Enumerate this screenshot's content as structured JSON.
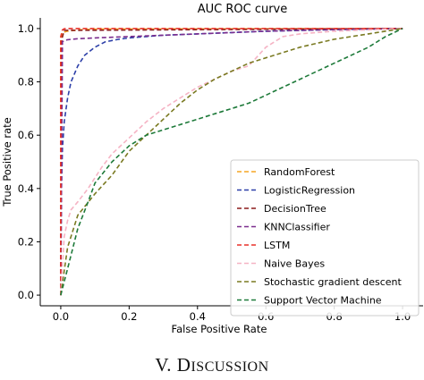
{
  "chart_data": {
    "type": "line",
    "title": "AUC ROC curve",
    "xlabel": "False Positive Rate",
    "ylabel": "True Positive rate",
    "xlim": [
      -0.06,
      1.06
    ],
    "ylim": [
      -0.04,
      1.04
    ],
    "xticks": [
      "0.0",
      "0.2",
      "0.4",
      "0.6",
      "0.8",
      "1.0"
    ],
    "yticks": [
      "0.0",
      "0.2",
      "0.4",
      "0.6",
      "0.8",
      "1.0"
    ],
    "grid": false,
    "legend_position": "lower right",
    "line_style": "dashed",
    "series": [
      {
        "name": "RandomForest",
        "color": "#f5a623",
        "x": [
          0,
          0,
          0.005,
          0.02,
          0.05,
          0.1,
          1.0
        ],
        "y": [
          0,
          0.96,
          0.985,
          0.99,
          0.995,
          0.998,
          1.0
        ]
      },
      {
        "name": "LogisticRegression",
        "color": "#2c3fa8",
        "x": [
          0,
          0.002,
          0.005,
          0.01,
          0.02,
          0.03,
          0.05,
          0.07,
          0.1,
          0.13,
          0.17,
          0.2,
          0.25,
          0.3,
          0.4,
          0.5,
          0.6,
          0.7,
          0.8,
          0.9,
          1.0
        ],
        "y": [
          0,
          0.4,
          0.55,
          0.65,
          0.74,
          0.8,
          0.86,
          0.9,
          0.93,
          0.95,
          0.96,
          0.965,
          0.97,
          0.975,
          0.98,
          0.985,
          0.99,
          0.993,
          0.996,
          0.998,
          1.0
        ]
      },
      {
        "name": "DecisionTree",
        "color": "#8b1a1a",
        "x": [
          0,
          0.003,
          0.01,
          1.0
        ],
        "y": [
          0,
          0.96,
          0.993,
          1.0
        ]
      },
      {
        "name": "KNNClassifier",
        "color": "#7b2d8e",
        "x": [
          0,
          0.005,
          0.01,
          0.02,
          0.05,
          0.1,
          0.2,
          0.3,
          0.4,
          0.5,
          0.6,
          0.7,
          0.8,
          0.9,
          1.0
        ],
        "y": [
          0,
          0.95,
          0.955,
          0.958,
          0.962,
          0.965,
          0.97,
          0.975,
          0.98,
          0.985,
          0.99,
          0.993,
          0.996,
          0.998,
          1.0
        ]
      },
      {
        "name": "LSTM",
        "color": "#e8302a",
        "x": [
          0,
          0.0,
          0.005,
          0.01,
          0.02,
          1.0
        ],
        "y": [
          0,
          0.97,
          0.995,
          0.999,
          1.0,
          1.0
        ]
      },
      {
        "name": "Naive Bayes",
        "color": "#f5b3c4",
        "x": [
          0,
          0.01,
          0.02,
          0.03,
          0.05,
          0.08,
          0.1,
          0.12,
          0.15,
          0.2,
          0.25,
          0.3,
          0.35,
          0.4,
          0.45,
          0.5,
          0.55,
          0.6,
          0.65,
          0.7,
          0.8,
          0.9,
          1.0
        ],
        "y": [
          0,
          0.22,
          0.28,
          0.32,
          0.35,
          0.4,
          0.44,
          0.48,
          0.53,
          0.59,
          0.65,
          0.7,
          0.74,
          0.78,
          0.81,
          0.84,
          0.86,
          0.93,
          0.97,
          0.98,
          0.99,
          0.995,
          1.0
        ]
      },
      {
        "name": "Stochastic gradient descent",
        "color": "#7a7a22",
        "x": [
          0,
          0.02,
          0.05,
          0.1,
          0.15,
          0.2,
          0.25,
          0.3,
          0.35,
          0.4,
          0.45,
          0.5,
          0.55,
          0.6,
          0.7,
          0.8,
          0.9,
          1.0
        ],
        "y": [
          0,
          0.18,
          0.3,
          0.38,
          0.45,
          0.54,
          0.6,
          0.66,
          0.72,
          0.77,
          0.81,
          0.84,
          0.87,
          0.89,
          0.93,
          0.96,
          0.98,
          1.0
        ]
      },
      {
        "name": "Support Vector Machine",
        "color": "#1e7a3a",
        "x": [
          0,
          0.02,
          0.05,
          0.08,
          0.1,
          0.15,
          0.2,
          0.25,
          0.3,
          0.35,
          0.4,
          0.45,
          0.5,
          0.55,
          0.6,
          0.65,
          0.7,
          0.8,
          0.9,
          0.95,
          1.0
        ],
        "y": [
          0,
          0.1,
          0.25,
          0.35,
          0.42,
          0.5,
          0.56,
          0.6,
          0.62,
          0.64,
          0.66,
          0.68,
          0.7,
          0.72,
          0.75,
          0.78,
          0.81,
          0.87,
          0.93,
          0.97,
          1.0
        ]
      }
    ]
  },
  "section": {
    "heading_numeral": "V.",
    "heading_first": "D",
    "heading_rest": "ISCUSSION"
  }
}
